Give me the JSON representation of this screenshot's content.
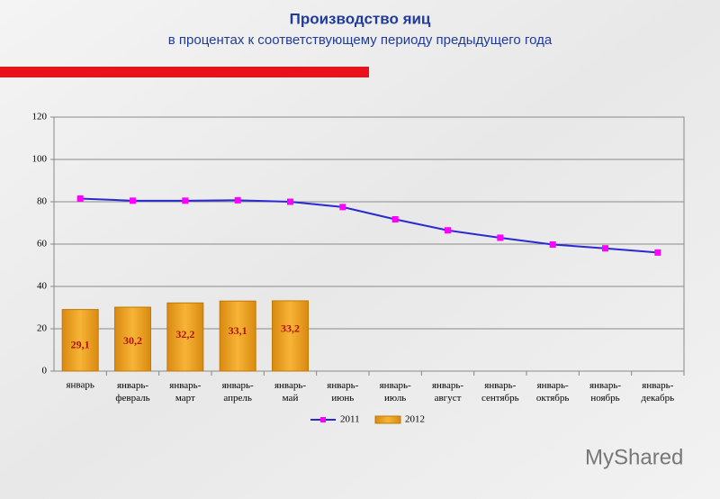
{
  "chart_data": {
    "type": "combo",
    "title": "Производство яиц",
    "subtitle": "в процентах к соответствующему периоду предыдущего года",
    "categories": [
      "январь",
      "январь-февраль",
      "январь-март",
      "январь-апрель",
      "январь-май",
      "январь-июнь",
      "январь-июль",
      "январь-август",
      "январь-сентябрь",
      "январь-октябрь",
      "январь-ноябрь",
      "январь-декабрь"
    ],
    "series": [
      {
        "name": "2011",
        "type": "line",
        "color": "#2a2ad0",
        "marker_color": "#ff00ff",
        "values": [
          81.5,
          80.5,
          80.5,
          80.7,
          80,
          77.5,
          71.7,
          66.5,
          63,
          59.8,
          58,
          56
        ]
      },
      {
        "name": "2012",
        "type": "bar",
        "color": "#f2a31e",
        "values": [
          29.1,
          30.2,
          32.2,
          33.1,
          33.2,
          null,
          null,
          null,
          null,
          null,
          null,
          null
        ],
        "value_labels": [
          "29,1",
          "30,2",
          "32,2",
          "33,1",
          "33,2",
          null,
          null,
          null,
          null,
          null,
          null,
          null
        ]
      }
    ],
    "ylim": [
      0,
      120
    ],
    "yticks": [
      0,
      20,
      40,
      60,
      80,
      100,
      120
    ],
    "grid": true,
    "legend": "bottom",
    "watermark": "MyShared"
  }
}
